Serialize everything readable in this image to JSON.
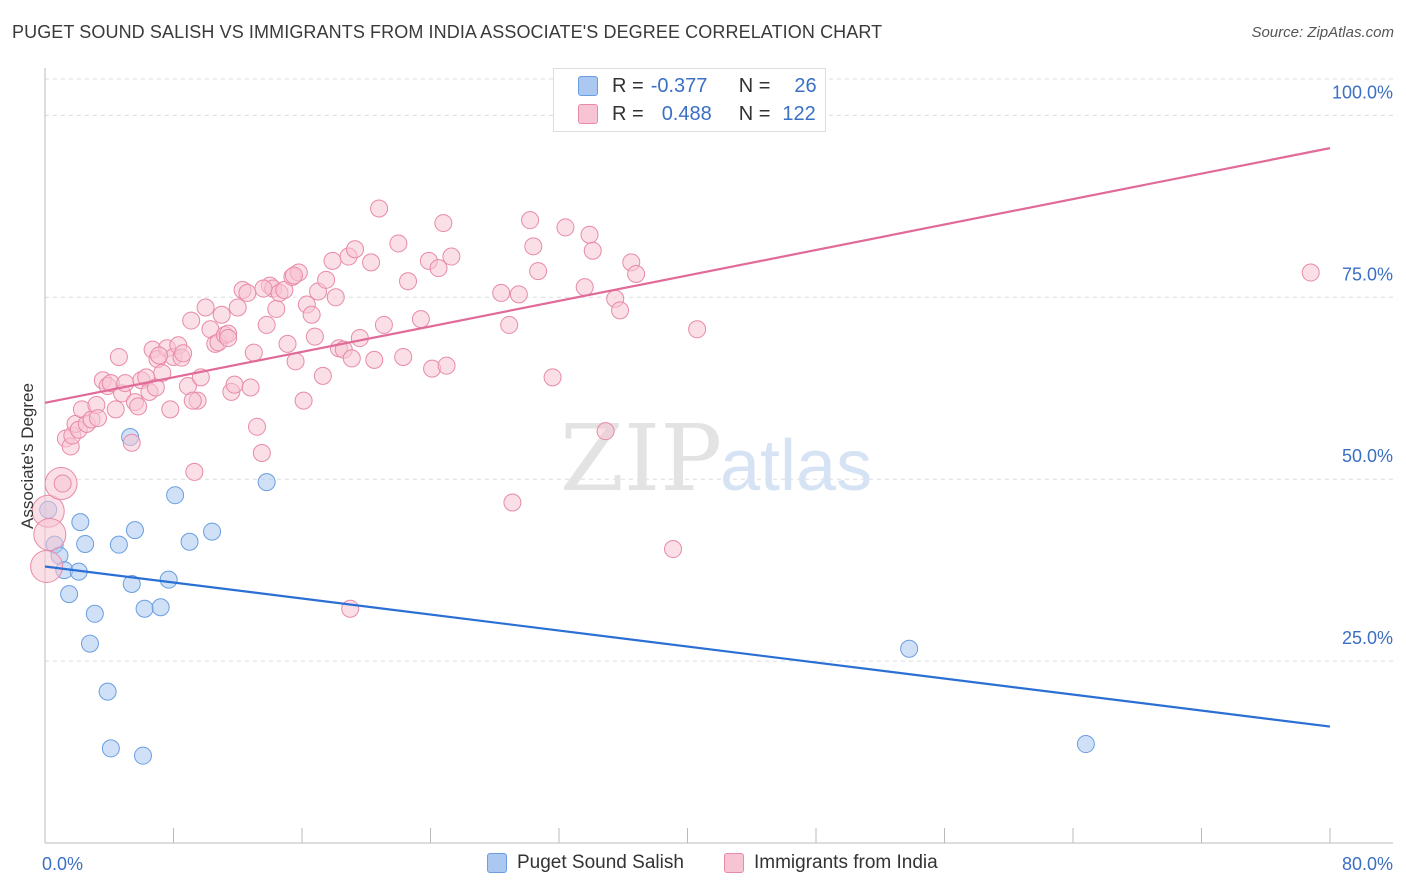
{
  "title": "PUGET SOUND SALISH VS IMMIGRANTS FROM INDIA ASSOCIATE'S DEGREE CORRELATION CHART",
  "source": "Source: ZipAtlas.com",
  "watermark": {
    "zip": "ZIP",
    "atlas": "atlas"
  },
  "legend": {
    "rows": [
      {
        "r_label": "R =",
        "r_value": "-0.377",
        "n_label": "N =",
        "n_value": "26"
      },
      {
        "r_label": "R =",
        "r_value": "0.488",
        "n_label": "N =",
        "n_value": "122"
      }
    ]
  },
  "colors": {
    "blue_fill": "#aac8f0",
    "blue_stroke": "#6a9ee0",
    "blue_line": "#2a6fd4",
    "pink_fill": "#f7c4d4",
    "pink_stroke": "#e88aa8",
    "pink_line": "#e06a98",
    "axis_label": "#3b6fc4",
    "grid": "#dddddd"
  },
  "chart_data": {
    "type": "scatter",
    "title": "PUGET SOUND SALISH VS IMMIGRANTS FROM INDIA ASSOCIATE'S DEGREE CORRELATION CHART",
    "xlabel": "",
    "ylabel": "Associate's Degree",
    "xlim": [
      0,
      80
    ],
    "ylim": [
      0,
      105
    ],
    "x_tick_labels": [
      "0.0%",
      "80.0%"
    ],
    "y_ticks": [
      25,
      50,
      75,
      100
    ],
    "y_tick_labels": [
      "25.0%",
      "50.0%",
      "75.0%",
      "100.0%"
    ],
    "grid": true,
    "legend_placement": "bottom-center",
    "series": [
      {
        "name": "Puget Sound Salish",
        "color": "blue",
        "trend": [
          [
            0,
            38.0
          ],
          [
            80,
            16.0
          ]
        ],
        "points": [
          [
            0.2,
            45.8
          ],
          [
            0.6,
            41.0
          ],
          [
            0.9,
            39.5
          ],
          [
            1.2,
            37.5
          ],
          [
            1.5,
            34.2
          ],
          [
            2.1,
            37.3
          ],
          [
            2.2,
            44.1
          ],
          [
            2.5,
            41.1
          ],
          [
            2.8,
            27.4
          ],
          [
            3.1,
            31.5
          ],
          [
            3.9,
            20.8
          ],
          [
            4.1,
            13.0
          ],
          [
            4.6,
            41.0
          ],
          [
            5.3,
            55.8
          ],
          [
            5.4,
            35.6
          ],
          [
            5.6,
            43.0
          ],
          [
            6.2,
            32.2
          ],
          [
            6.1,
            12.0
          ],
          [
            7.2,
            32.4
          ],
          [
            7.7,
            36.2
          ],
          [
            8.1,
            47.8
          ],
          [
            9.0,
            41.4
          ],
          [
            10.4,
            42.8
          ],
          [
            13.8,
            49.6
          ],
          [
            53.8,
            26.7
          ],
          [
            64.8,
            13.6
          ]
        ],
        "big_points": []
      },
      {
        "name": "Immigrants from India",
        "color": "pink",
        "trend": [
          [
            0,
            60.5
          ],
          [
            80,
            95.5
          ]
        ],
        "points": [
          [
            1.1,
            49.4
          ],
          [
            1.3,
            55.6
          ],
          [
            1.6,
            54.5
          ],
          [
            1.7,
            56.0
          ],
          [
            1.9,
            57.6
          ],
          [
            2.1,
            56.8
          ],
          [
            2.3,
            59.6
          ],
          [
            2.6,
            57.6
          ],
          [
            2.9,
            58.2
          ],
          [
            3.2,
            60.2
          ],
          [
            3.3,
            58.4
          ],
          [
            3.6,
            63.6
          ],
          [
            3.9,
            62.8
          ],
          [
            4.1,
            63.2
          ],
          [
            4.4,
            59.6
          ],
          [
            4.6,
            66.8
          ],
          [
            4.8,
            61.8
          ],
          [
            5.0,
            63.2
          ],
          [
            5.4,
            55.0
          ],
          [
            5.6,
            60.6
          ],
          [
            5.8,
            60.0
          ],
          [
            6.0,
            63.6
          ],
          [
            6.3,
            64.0
          ],
          [
            6.5,
            62.0
          ],
          [
            6.7,
            67.8
          ],
          [
            6.9,
            62.6
          ],
          [
            7.0,
            66.5
          ],
          [
            7.3,
            64.6
          ],
          [
            7.6,
            68.0
          ],
          [
            7.8,
            59.6
          ],
          [
            8.0,
            66.8
          ],
          [
            8.3,
            68.4
          ],
          [
            8.5,
            66.7
          ],
          [
            8.6,
            67.3
          ],
          [
            8.9,
            62.8
          ],
          [
            9.1,
            71.8
          ],
          [
            9.3,
            51.0
          ],
          [
            9.5,
            60.8
          ],
          [
            9.7,
            64.0
          ],
          [
            10.0,
            73.6
          ],
          [
            10.3,
            70.6
          ],
          [
            10.6,
            68.6
          ],
          [
            10.8,
            68.8
          ],
          [
            11.0,
            72.6
          ],
          [
            11.2,
            69.8
          ],
          [
            11.4,
            70.0
          ],
          [
            11.6,
            62.0
          ],
          [
            11.8,
            63.0
          ],
          [
            12.0,
            73.6
          ],
          [
            12.3,
            76.0
          ],
          [
            12.6,
            75.6
          ],
          [
            12.8,
            62.6
          ],
          [
            13.0,
            67.4
          ],
          [
            13.2,
            57.2
          ],
          [
            13.5,
            53.6
          ],
          [
            13.8,
            71.2
          ],
          [
            14.0,
            76.6
          ],
          [
            14.2,
            76.2
          ],
          [
            14.4,
            73.4
          ],
          [
            14.6,
            75.6
          ],
          [
            14.9,
            76.0
          ],
          [
            15.1,
            68.6
          ],
          [
            15.4,
            77.8
          ],
          [
            15.6,
            66.2
          ],
          [
            15.8,
            78.4
          ],
          [
            16.1,
            60.8
          ],
          [
            16.3,
            74.0
          ],
          [
            16.6,
            72.6
          ],
          [
            16.8,
            69.6
          ],
          [
            17.0,
            75.8
          ],
          [
            17.3,
            64.2
          ],
          [
            17.5,
            77.4
          ],
          [
            17.9,
            80.0
          ],
          [
            18.1,
            75.0
          ],
          [
            18.3,
            68.0
          ],
          [
            18.6,
            67.8
          ],
          [
            18.9,
            80.6
          ],
          [
            19.1,
            66.6
          ],
          [
            19.3,
            81.6
          ],
          [
            19.6,
            69.4
          ],
          [
            20.3,
            79.8
          ],
          [
            20.5,
            66.4
          ],
          [
            21.1,
            71.2
          ],
          [
            22.0,
            82.4
          ],
          [
            22.3,
            66.8
          ],
          [
            22.6,
            77.2
          ],
          [
            23.4,
            72.0
          ],
          [
            23.9,
            80.0
          ],
          [
            24.1,
            65.2
          ],
          [
            24.5,
            79.0
          ],
          [
            24.8,
            85.2
          ],
          [
            25.0,
            65.6
          ],
          [
            25.3,
            80.6
          ],
          [
            28.4,
            75.6
          ],
          [
            28.9,
            71.2
          ],
          [
            29.1,
            46.8
          ],
          [
            29.5,
            75.4
          ],
          [
            30.2,
            85.6
          ],
          [
            30.4,
            82.0
          ],
          [
            30.7,
            78.6
          ],
          [
            31.6,
            64.0
          ],
          [
            32.4,
            84.6
          ],
          [
            33.6,
            76.4
          ],
          [
            33.9,
            83.6
          ],
          [
            34.1,
            81.4
          ],
          [
            34.9,
            56.6
          ],
          [
            35.5,
            74.8
          ],
          [
            35.8,
            73.2
          ],
          [
            36.5,
            79.8
          ],
          [
            36.8,
            78.2
          ],
          [
            39.1,
            40.4
          ],
          [
            40.6,
            70.6
          ],
          [
            78.8,
            78.4
          ],
          [
            19.0,
            32.2
          ],
          [
            20.8,
            87.2
          ],
          [
            11.4,
            69.4
          ],
          [
            7.1,
            67.0
          ],
          [
            13.6,
            76.2
          ],
          [
            15.5,
            78.0
          ],
          [
            9.2,
            60.8
          ]
        ],
        "big_points": [
          [
            0.2,
            45.6
          ],
          [
            0.3,
            42.4
          ],
          [
            0.1,
            38.0
          ],
          [
            1.0,
            49.4
          ]
        ]
      }
    ]
  },
  "bottom_legend": {
    "items": [
      {
        "label": "Puget Sound Salish"
      },
      {
        "label": "Immigrants from India"
      }
    ]
  },
  "y_axis_title": "Associate's Degree"
}
